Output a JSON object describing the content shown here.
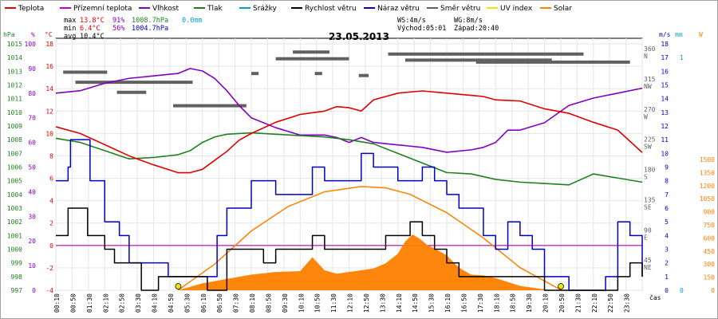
{
  "chart_data": {
    "type": "line",
    "title": "23.05.2013",
    "legend": [
      {
        "label": "Teplota",
        "color": "#e00000"
      },
      {
        "label": "Přízemní teplota",
        "color": "#c000c0"
      },
      {
        "label": "Vlhkost",
        "color": "#8000c0"
      },
      {
        "label": "Tlak",
        "color": "#208020"
      },
      {
        "label": "Srážky",
        "color": "#00a0d0"
      },
      {
        "label": "Rychlost větru",
        "color": "#000000"
      },
      {
        "label": "Náraz větru",
        "color": "#0000c0"
      },
      {
        "label": "Směr větru",
        "color": "#606060"
      },
      {
        "label": "UV index",
        "color": "#e8e800"
      },
      {
        "label": "Solar",
        "color": "#ff8000"
      }
    ],
    "stats": {
      "max": {
        "label": "max",
        "temp": "13.8°C",
        "hum": "91%",
        "press": "1008.7hPa",
        "rain": "0.0mm"
      },
      "min": {
        "label": "min",
        "temp": "6.4°C",
        "hum": "56%",
        "press": "1004.7hPa"
      },
      "avg": {
        "label": "avg",
        "temp": "10.4°C"
      }
    },
    "info": {
      "ws": "WS:4m/s",
      "wg": "WG:8m/s",
      "sunrise": "Východ:05:01",
      "sunset": "Západ:20:40"
    },
    "axes": {
      "hpa": {
        "unit": "hPa",
        "ticks": [
          "1015",
          "1014",
          "1013",
          "1012",
          "1011",
          "1010",
          "1009",
          "1008",
          "1007",
          "1006",
          "1005",
          "1004",
          "1003",
          "1002",
          "1001",
          "1000",
          "999",
          "998",
          "997"
        ]
      },
      "pct": {
        "unit": "%",
        "ticks": [
          "100",
          "90",
          "80",
          "70",
          "60",
          "50",
          "40",
          "30",
          "20",
          "10",
          "0"
        ]
      },
      "temp": {
        "unit": "°C",
        "ticks": [
          "18",
          "16",
          "14",
          "12",
          "10",
          "8",
          "6",
          "4",
          "2",
          "0",
          "-2",
          "-4"
        ]
      },
      "dir": {
        "ticks": [
          "360",
          "N",
          "315",
          "NW",
          "270",
          "W",
          "225",
          "SW",
          "180",
          "S",
          "135",
          "SE",
          "90",
          "E",
          "45",
          "NE"
        ]
      },
      "ms": {
        "unit": "m/s",
        "ticks": [
          "18",
          "17",
          "16",
          "15",
          "14",
          "13",
          "12",
          "11",
          "10",
          "9",
          "8",
          "7",
          "6",
          "5",
          "4",
          "3",
          "2",
          "1",
          "0"
        ]
      },
      "mm": {
        "unit": "mm",
        "ticks": [
          "1",
          "0"
        ]
      },
      "w": {
        "unit": "W",
        "ticks": [
          "1500",
          "1350",
          "1200",
          "1050",
          "900",
          "750",
          "600",
          "450",
          "300",
          "150",
          "0"
        ]
      }
    },
    "x_ticks": [
      "00:10",
      "00:50",
      "01:30",
      "02:10",
      "02:50",
      "03:30",
      "04:10",
      "04:50",
      "05:30",
      "06:10",
      "06:50",
      "07:30",
      "08:10",
      "08:50",
      "09:30",
      "10:10",
      "10:50",
      "11:30",
      "12:10",
      "12:50",
      "13:30",
      "14:10",
      "14:50",
      "15:30",
      "16:10",
      "16:50",
      "17:30",
      "18:10",
      "18:50",
      "19:30",
      "20:10",
      "20:50",
      "21:30",
      "22:10",
      "22:50",
      "23:30"
    ],
    "x_label": "čas",
    "series": {
      "temp": {
        "t": [
          0,
          1,
          2,
          3,
          4,
          5,
          5.5,
          6,
          6.5,
          7,
          7.5,
          8,
          9,
          10,
          11,
          11.5,
          12,
          12.5,
          13,
          14,
          15,
          16,
          17,
          17.5,
          18,
          19,
          20,
          21,
          22,
          23,
          24
        ],
        "v": [
          10.6,
          10,
          9,
          8,
          7.2,
          6.5,
          6.5,
          6.8,
          7.6,
          8.4,
          9.4,
          10,
          11,
          11.7,
          12,
          12.4,
          12.3,
          12,
          13,
          13.6,
          13.8,
          13.6,
          13.4,
          13.3,
          13,
          12.9,
          12.2,
          11.8,
          11,
          10.3,
          8.3
        ]
      },
      "humidity": {
        "t": [
          0,
          1,
          2,
          3,
          4,
          5,
          5.5,
          6,
          6.5,
          7,
          7.5,
          8,
          9,
          10,
          11,
          11.5,
          12,
          12.5,
          13,
          14,
          15,
          16,
          17,
          17.5,
          18,
          18.5,
          19,
          20,
          21,
          22,
          22.5,
          23,
          24
        ],
        "v": [
          80,
          81,
          84,
          86,
          87,
          88,
          90,
          89,
          86,
          81,
          75,
          70,
          66,
          63,
          63,
          62,
          60,
          62,
          60,
          59,
          58,
          56,
          57,
          58,
          60,
          65,
          65,
          68,
          75,
          78,
          79,
          80,
          82
        ]
      },
      "pressure": {
        "t": [
          0,
          1,
          2,
          3,
          4,
          5,
          5.5,
          6,
          6.5,
          7,
          8,
          9,
          10,
          11,
          12,
          13,
          14,
          15,
          16,
          17,
          18,
          19,
          20,
          21,
          22,
          23,
          24
        ],
        "v": [
          1008.1,
          1007.8,
          1007.2,
          1006.6,
          1006.7,
          1006.9,
          1007.2,
          1007.8,
          1008.2,
          1008.4,
          1008.5,
          1008.4,
          1008.3,
          1008.2,
          1008,
          1007.7,
          1007,
          1006.3,
          1005.6,
          1005.5,
          1005.1,
          1004.9,
          1004.8,
          1004.7,
          1005.5,
          1005.2,
          1004.9
        ]
      },
      "wind": {
        "t": [
          0,
          0.5,
          0.9,
          1.3,
          2,
          2.4,
          3.5,
          4.2,
          4.6,
          5.5,
          6.2,
          6.5,
          7,
          8,
          8.5,
          9,
          10,
          10.5,
          11,
          12,
          13,
          13.5,
          14,
          14.5,
          15,
          15.5,
          16,
          16.5,
          17,
          18,
          18.5,
          19,
          19.5,
          20,
          20.5,
          21,
          22.7,
          23,
          23.5,
          24
        ],
        "v": [
          4,
          6,
          6,
          4,
          3,
          2,
          0,
          1,
          1,
          1,
          0,
          0,
          3,
          3,
          2,
          3,
          3,
          4,
          3,
          3,
          3,
          4,
          4,
          5,
          4,
          3,
          2,
          1,
          1,
          1,
          1,
          1,
          1,
          0,
          0,
          0,
          0,
          1,
          2,
          1
        ]
      },
      "gust": {
        "t": [
          0,
          0.5,
          0.6,
          1,
          1.4,
          2,
          2.6,
          3,
          4,
          4.6,
          5.5,
          6,
          6.3,
          6.6,
          7,
          7.5,
          8,
          8.5,
          9,
          10,
          10.5,
          11,
          12,
          12.5,
          13,
          13.5,
          14,
          14.5,
          15,
          15.5,
          16,
          16.5,
          17,
          17.5,
          18,
          18.5,
          19,
          19.5,
          20,
          20.5,
          21,
          22,
          22.5,
          23,
          23.5,
          24
        ],
        "v": [
          8,
          9,
          11,
          11,
          8,
          5,
          4,
          2,
          2,
          1,
          1,
          1,
          1,
          4,
          6,
          6,
          8,
          8,
          7,
          7,
          9,
          8,
          8,
          10,
          9,
          9,
          8,
          8,
          9,
          8,
          7,
          6,
          6,
          4,
          3,
          5,
          4,
          3,
          1,
          1,
          0,
          0,
          1,
          5,
          4,
          1
        ]
      },
      "solar": {
        "t": [
          5,
          6,
          7,
          8,
          9,
          10,
          10.5,
          11,
          11.5,
          12,
          12.5,
          13,
          13.5,
          14,
          14.3,
          14.6,
          14.9,
          15.2,
          15.5,
          16,
          16.5,
          17,
          17.5,
          18,
          19,
          20,
          20.7
        ],
        "v": [
          0,
          80,
          130,
          180,
          210,
          220,
          380,
          230,
          190,
          210,
          230,
          250,
          310,
          420,
          560,
          640,
          590,
          520,
          480,
          400,
          260,
          180,
          170,
          140,
          50,
          10,
          0
        ]
      },
      "solar_theory": {
        "t": [
          5.0,
          6.5,
          8,
          9.5,
          11,
          12.5,
          13.5,
          14.5,
          16,
          17.5,
          19,
          20.7
        ],
        "v": [
          0,
          300,
          680,
          960,
          1130,
          1190,
          1175,
          1100,
          890,
          600,
          260,
          0
        ]
      },
      "dir_marks": [
        {
          "t": 0.3,
          "v": 325,
          "w": 1.8
        },
        {
          "t": 0.8,
          "v": 310,
          "w": 4.8
        },
        {
          "t": 4.8,
          "v": 275,
          "w": 3.0
        },
        {
          "t": 2.5,
          "v": 295,
          "w": 1.2
        },
        {
          "t": 9.7,
          "v": 355,
          "w": 1.5
        },
        {
          "t": 9.0,
          "v": 345,
          "w": 3.0
        },
        {
          "t": 13.6,
          "v": 352,
          "w": 8.0
        },
        {
          "t": 14.3,
          "v": 343,
          "w": 6.0
        },
        {
          "t": 17.2,
          "v": 340,
          "w": 6.3
        },
        {
          "t": 8.0,
          "v": 323,
          "w": 0.3
        },
        {
          "t": 10.6,
          "v": 323,
          "w": 0.3
        },
        {
          "t": 12.4,
          "v": 320,
          "w": 0.4
        }
      ]
    },
    "zero_line_color": "#c000c0",
    "uv_markers": [
      {
        "t": 5.01
      },
      {
        "t": 20.67
      }
    ]
  }
}
